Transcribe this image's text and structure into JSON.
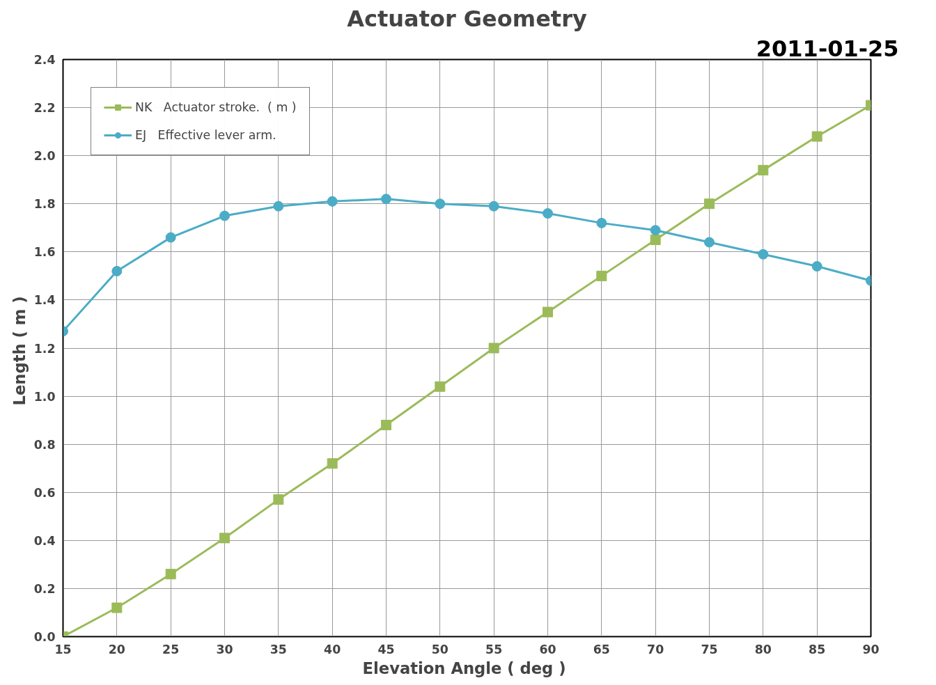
{
  "chart_data": {
    "type": "line",
    "title": "Actuator Geometry",
    "xlabel": "Elevation Angle  ( deg )",
    "ylabel": "Length  ( m )",
    "annotations": [
      "2011-01-25"
    ],
    "x": [
      15,
      20,
      25,
      30,
      35,
      40,
      45,
      50,
      55,
      60,
      65,
      70,
      75,
      80,
      85,
      90
    ],
    "series": [
      {
        "name": "NK   Actuator stroke.  ( m )",
        "color": "#9bbb59",
        "marker": "square",
        "values": [
          0.0,
          0.12,
          0.26,
          0.41,
          0.57,
          0.72,
          0.88,
          1.04,
          1.2,
          1.35,
          1.5,
          1.65,
          1.8,
          1.94,
          2.08,
          2.21
        ]
      },
      {
        "name": "EJ   Effective lever arm.",
        "color": "#4bacc6",
        "marker": "circle",
        "values": [
          1.27,
          1.52,
          1.66,
          1.75,
          1.79,
          1.81,
          1.82,
          1.8,
          1.79,
          1.76,
          1.72,
          1.69,
          1.64,
          1.59,
          1.54,
          1.48
        ]
      }
    ],
    "xlim": [
      15,
      90
    ],
    "xticks": [
      15,
      20,
      25,
      30,
      35,
      40,
      45,
      50,
      55,
      60,
      65,
      70,
      75,
      80,
      85,
      90
    ],
    "ylim": [
      0,
      2.4
    ],
    "yticks": [
      {
        "value": 0,
        "label": "0.0"
      },
      {
        "value": 0.2,
        "label": "0.2"
      },
      {
        "value": 0.4,
        "label": "0.4"
      },
      {
        "value": 0.6,
        "label": "0.6"
      },
      {
        "value": 0.8,
        "label": "0.8"
      },
      {
        "value": 1.0,
        "label": "1.0"
      },
      {
        "value": 1.2,
        "label": "1.2"
      },
      {
        "value": 1.4,
        "label": "1.4"
      },
      {
        "value": 1.6,
        "label": "1.6"
      },
      {
        "value": 1.8,
        "label": "1.8"
      },
      {
        "value": 2.0,
        "label": "2.0"
      },
      {
        "value": 2.2,
        "label": "2.2"
      },
      {
        "value": 2.4,
        "label": "2.4"
      }
    ],
    "grid": true,
    "legend": "top left",
    "line_style": "solid"
  }
}
